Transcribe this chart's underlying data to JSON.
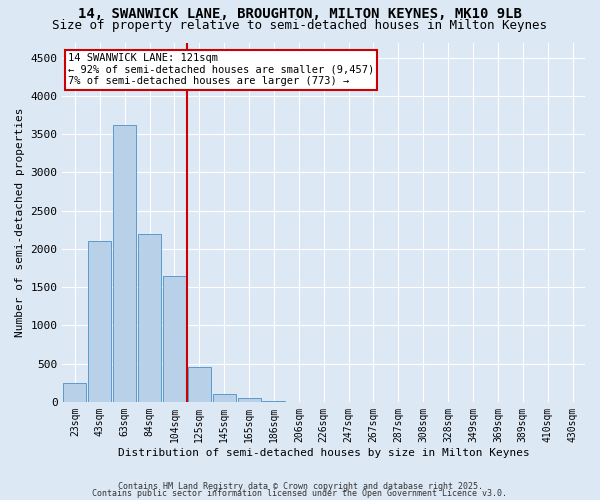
{
  "title1": "14, SWANWICK LANE, BROUGHTON, MILTON KEYNES, MK10 9LB",
  "title2": "Size of property relative to semi-detached houses in Milton Keynes",
  "xlabel": "Distribution of semi-detached houses by size in Milton Keynes",
  "ylabel": "Number of semi-detached properties",
  "categories": [
    "23sqm",
    "43sqm",
    "63sqm",
    "84sqm",
    "104sqm",
    "125sqm",
    "145sqm",
    "165sqm",
    "186sqm",
    "206sqm",
    "226sqm",
    "247sqm",
    "267sqm",
    "287sqm",
    "308sqm",
    "328sqm",
    "349sqm",
    "369sqm",
    "389sqm",
    "410sqm",
    "430sqm"
  ],
  "values": [
    250,
    2100,
    3620,
    2200,
    1640,
    460,
    105,
    50,
    5,
    0,
    0,
    0,
    0,
    0,
    0,
    0,
    0,
    0,
    0,
    0,
    0
  ],
  "bar_color": "#b8d0e8",
  "bar_edge_color": "#5a9acc",
  "vline_color": "#cc0000",
  "annotation_title": "14 SWANWICK LANE: 121sqm",
  "annotation_line1": "← 92% of semi-detached houses are smaller (9,457)",
  "annotation_line2": "7% of semi-detached houses are larger (773) →",
  "annotation_box_color": "#cc0000",
  "ylim": [
    0,
    4700
  ],
  "yticks": [
    0,
    500,
    1000,
    1500,
    2000,
    2500,
    3000,
    3500,
    4000,
    4500
  ],
  "background_color": "#dde8f5",
  "plot_background": "#dde8f5",
  "grid_color": "#ffffff",
  "footer1": "Contains HM Land Registry data © Crown copyright and database right 2025.",
  "footer2": "Contains public sector information licensed under the Open Government Licence v3.0.",
  "title_fontsize": 10,
  "subtitle_fontsize": 9,
  "tick_fontsize": 7,
  "ylabel_fontsize": 8,
  "xlabel_fontsize": 8,
  "footer_fontsize": 6,
  "annot_fontsize": 7.5
}
